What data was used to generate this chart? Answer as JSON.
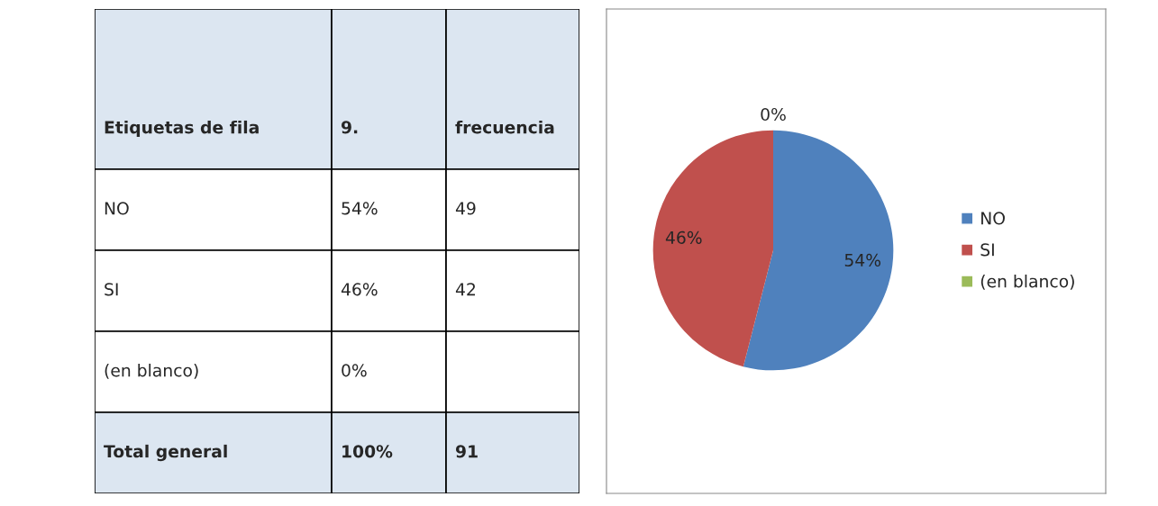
{
  "chart_data": [
    {
      "type": "other",
      "annotations": [
        "Etiquetas de fila",
        "9.",
        "frecuencia",
        "NO",
        "54%",
        "49",
        "SI",
        "46%",
        "42",
        "(en blanco)",
        "0%",
        null,
        "Total general",
        "100%",
        "91"
      ]
    },
    {
      "type": "pie",
      "categories": [
        "NO",
        "SI",
        "(en blanco)"
      ],
      "values": [
        54,
        46,
        0
      ],
      "colors": [
        "#4f81bd",
        "#c0504d",
        "#9bbb59"
      ],
      "value_labels": [
        "54%",
        "46%",
        "0%"
      ],
      "legend": "right"
    }
  ]
}
